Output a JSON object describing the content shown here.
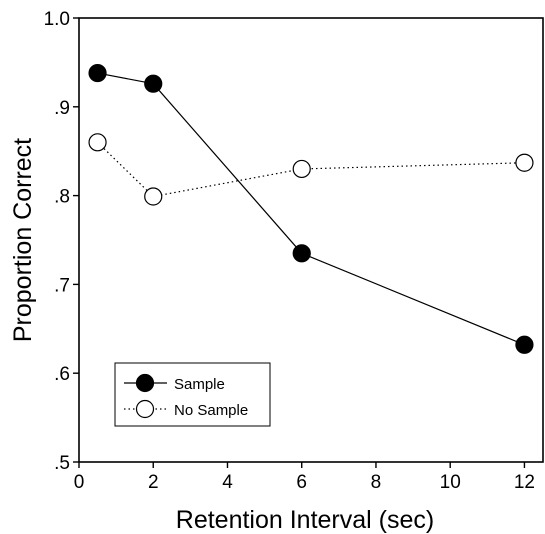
{
  "chart_data": {
    "type": "line",
    "xlabel": "Retention Interval (sec)",
    "ylabel": "Proportion Correct",
    "xlim": [
      0,
      12.5
    ],
    "ylim": [
      0.5,
      1.0
    ],
    "xticks": [
      0,
      2,
      4,
      6,
      8,
      10,
      12
    ],
    "xtick_labels": [
      "0",
      "2",
      "4",
      "6",
      "8",
      "10",
      "12"
    ],
    "yticks": [
      0.5,
      0.6,
      0.7,
      0.8,
      0.9,
      1.0
    ],
    "ytick_labels": [
      ".5",
      ".6",
      ".7",
      ".8",
      ".9",
      "1.0"
    ],
    "grid": false,
    "legend_position": "bottom-left",
    "series": [
      {
        "name": "Sample",
        "x": [
          0.5,
          2,
          6,
          12
        ],
        "y": [
          0.938,
          0.926,
          0.735,
          0.632
        ],
        "marker": "filled-circle",
        "line_style": "solid",
        "color": "#000000"
      },
      {
        "name": "No Sample",
        "x": [
          0.5,
          2,
          6,
          12
        ],
        "y": [
          0.86,
          0.799,
          0.83,
          0.837
        ],
        "marker": "open-circle",
        "line_style": "dotted",
        "color": "#000000"
      }
    ]
  }
}
